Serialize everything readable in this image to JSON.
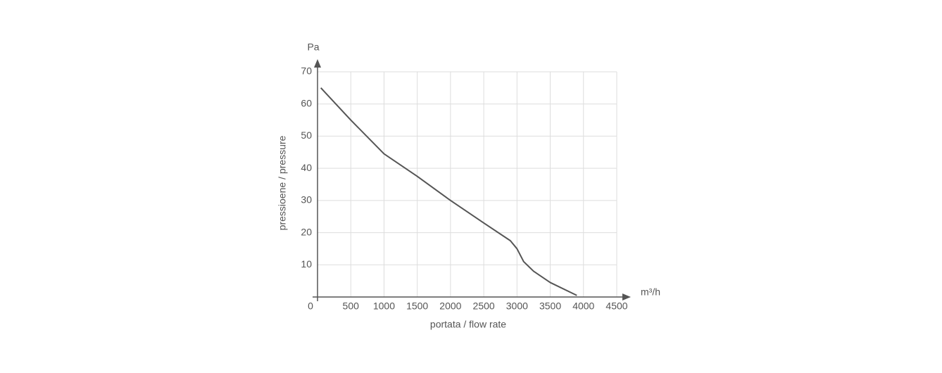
{
  "chart_data": {
    "type": "line",
    "y_label": "pressioene / pressure",
    "x_label": "portata / flow rate",
    "y_unit": "Pa",
    "x_unit": "m³/h",
    "x": [
      50,
      500,
      1000,
      1500,
      2000,
      2500,
      2900,
      3000,
      3100,
      3250,
      3500,
      3900
    ],
    "series": [
      {
        "color": "#555555",
        "values": [
          65,
          55,
          44.5,
          37.5,
          30,
          23,
          17.5,
          15,
          11,
          8,
          4.5,
          0.5
        ]
      }
    ],
    "xlim": [
      0,
      4500
    ],
    "ylim": [
      0,
      70
    ],
    "xticks": [
      0,
      500,
      1000,
      1500,
      2000,
      2500,
      3000,
      3500,
      4000,
      4500
    ],
    "yticks": [
      10,
      20,
      30,
      40,
      50,
      60,
      70
    ],
    "grid": true
  }
}
